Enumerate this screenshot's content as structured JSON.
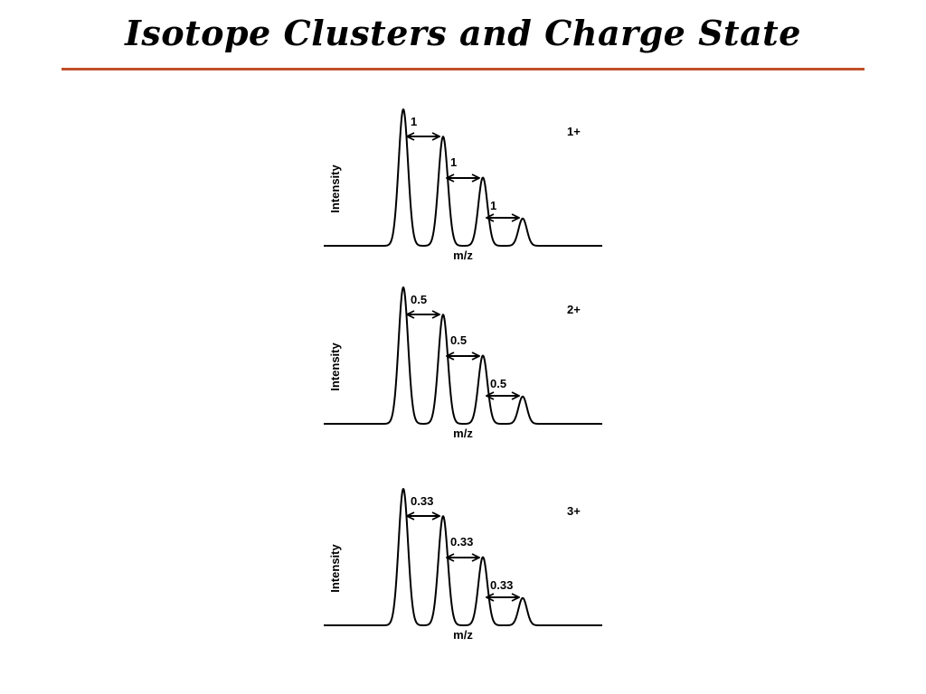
{
  "title": "Isotope Clusters and Charge State",
  "colors": {
    "title_rule": "#C1502A",
    "trace": "#000000"
  },
  "panels": [
    {
      "charge_label": "1+",
      "y_axis_label": "Intensity",
      "x_axis_label": "m/z",
      "spacing_labels": [
        "1",
        "1",
        "1"
      ],
      "relative_peak_heights": [
        1.0,
        0.8,
        0.5,
        0.2
      ]
    },
    {
      "charge_label": "2+",
      "y_axis_label": "Intensity",
      "x_axis_label": "m/z",
      "spacing_labels": [
        "0.5",
        "0.5",
        "0.5"
      ],
      "relative_peak_heights": [
        1.0,
        0.8,
        0.5,
        0.2
      ]
    },
    {
      "charge_label": "3+",
      "y_axis_label": "Intensity",
      "x_axis_label": "m/z",
      "spacing_labels": [
        "0.33",
        "0.33",
        "0.33"
      ],
      "relative_peak_heights": [
        1.0,
        0.8,
        0.5,
        0.2
      ]
    }
  ]
}
